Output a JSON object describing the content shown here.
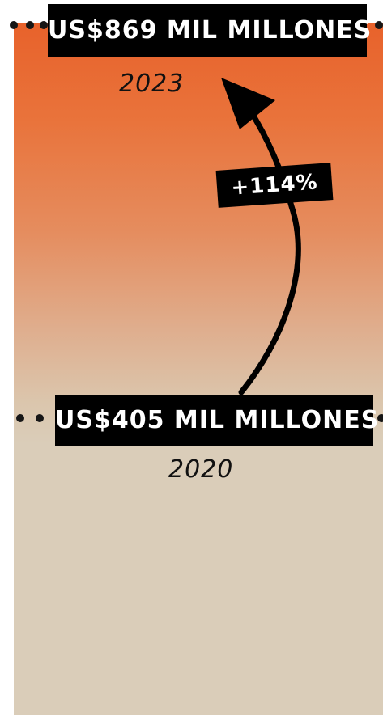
{
  "chart_data": {
    "type": "bar",
    "categories": [
      "2020",
      "2023"
    ],
    "values": [
      405,
      869
    ],
    "value_labels": [
      "US$405 MIL MILLONES",
      "US$869 MIL MILLONES"
    ],
    "change_label": "+114%",
    "title": "",
    "xlabel": "",
    "ylabel": ""
  },
  "colors": {
    "top": "#e8622b",
    "bottom": "#dacdb9",
    "label_bg": "#000000",
    "label_text": "#ffffff"
  }
}
